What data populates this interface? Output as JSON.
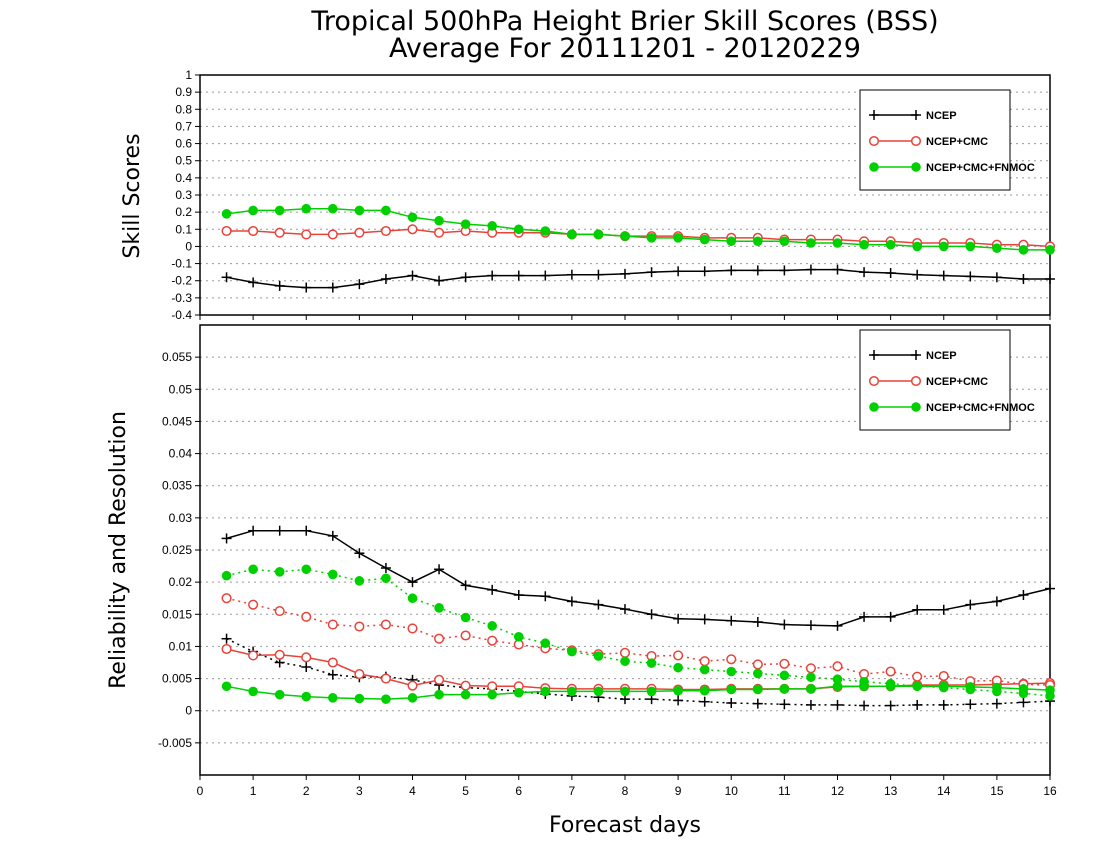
{
  "title": {
    "line1": "Tropical 500hPa Height Brier Skill Scores (BSS)",
    "line2": "Average For 20111201 - 20120229"
  },
  "xlabel": "Forecast days",
  "colors": {
    "ncep": "#000000",
    "cmc": "#e8433a",
    "fnmoc": "#00d000",
    "grid": "#9a9a9a"
  },
  "legend": [
    "NCEP",
    "NCEP+CMC",
    "NCEP+CMC+FNMOC"
  ],
  "chart_data": [
    {
      "type": "line",
      "ylabel": "Skill Scores",
      "xlim": [
        0,
        16
      ],
      "ylim": [
        -0.4,
        1
      ],
      "xticks": [
        "0",
        "1",
        "2",
        "3",
        "4",
        "5",
        "6",
        "7",
        "8",
        "9",
        "10",
        "11",
        "12",
        "13",
        "14",
        "15",
        "16"
      ],
      "yticks": [
        "-0.4",
        "-0.3",
        "-0.2",
        "-0.1",
        "0",
        "0.1",
        "0.2",
        "0.3",
        "0.4",
        "0.5",
        "0.6",
        "0.7",
        "0.8",
        "0.9",
        "1"
      ],
      "grid": true,
      "legend_position": "top-right",
      "x": [
        0.5,
        1,
        1.5,
        2,
        2.5,
        3,
        3.5,
        4,
        4.5,
        5,
        5.5,
        6,
        6.5,
        7,
        7.5,
        8,
        8.5,
        9,
        9.5,
        10,
        10.5,
        11,
        11.5,
        12,
        12.5,
        13,
        13.5,
        14,
        14.5,
        15,
        15.5,
        16
      ],
      "series": [
        {
          "name": "NCEP",
          "style": "solid",
          "marker": "plus",
          "values": [
            -0.18,
            -0.21,
            -0.23,
            -0.24,
            -0.24,
            -0.22,
            -0.19,
            -0.17,
            -0.2,
            -0.18,
            -0.17,
            -0.17,
            -0.17,
            -0.165,
            -0.165,
            -0.16,
            -0.15,
            -0.145,
            -0.145,
            -0.14,
            -0.14,
            -0.14,
            -0.135,
            -0.135,
            -0.15,
            -0.155,
            -0.165,
            -0.17,
            -0.175,
            -0.18,
            -0.19,
            -0.19
          ]
        },
        {
          "name": "NCEP+CMC",
          "style": "solid",
          "marker": "open-circle",
          "values": [
            0.09,
            0.09,
            0.08,
            0.07,
            0.07,
            0.08,
            0.09,
            0.1,
            0.08,
            0.09,
            0.08,
            0.08,
            0.08,
            0.07,
            0.07,
            0.06,
            0.06,
            0.06,
            0.05,
            0.05,
            0.05,
            0.04,
            0.04,
            0.04,
            0.03,
            0.03,
            0.02,
            0.02,
            0.02,
            0.01,
            0.01,
            0
          ]
        },
        {
          "name": "NCEP+CMC+FNMOC",
          "style": "solid",
          "marker": "filled-circle",
          "values": [
            0.19,
            0.21,
            0.21,
            0.22,
            0.22,
            0.21,
            0.21,
            0.17,
            0.15,
            0.13,
            0.12,
            0.1,
            0.09,
            0.07,
            0.07,
            0.06,
            0.05,
            0.05,
            0.04,
            0.03,
            0.03,
            0.03,
            0.02,
            0.02,
            0.01,
            0.01,
            0,
            0,
            0,
            -0.01,
            -0.02,
            -0.02
          ]
        }
      ]
    },
    {
      "type": "line",
      "ylabel": "Reliability and Resolution",
      "xlabel": "Forecast days",
      "xlim": [
        0,
        16
      ],
      "ylim": [
        -0.01,
        0.06
      ],
      "xticks": [
        "0",
        "1",
        "2",
        "3",
        "4",
        "5",
        "6",
        "7",
        "8",
        "9",
        "10",
        "11",
        "12",
        "13",
        "14",
        "15",
        "16"
      ],
      "yticks": [
        "-0.005",
        "0",
        "0.005",
        "0.01",
        "0.015",
        "0.02",
        "0.025",
        "0.03",
        "0.035",
        "0.04",
        "0.045",
        "0.05",
        "0.055"
      ],
      "grid": true,
      "legend_position": "top-right",
      "x": [
        0.5,
        1,
        1.5,
        2,
        2.5,
        3,
        3.5,
        4,
        4.5,
        5,
        5.5,
        6,
        6.5,
        7,
        7.5,
        8,
        8.5,
        9,
        9.5,
        10,
        10.5,
        11,
        11.5,
        12,
        12.5,
        13,
        13.5,
        14,
        14.5,
        15,
        15.5,
        16
      ],
      "series": [
        {
          "name": "NCEP",
          "metric": "resolution",
          "style": "solid",
          "marker": "plus",
          "values": [
            0.0268,
            0.028,
            0.028,
            0.028,
            0.0272,
            0.0245,
            0.0222,
            0.02,
            0.022,
            0.0195,
            0.0188,
            0.018,
            0.0178,
            0.017,
            0.0165,
            0.0158,
            0.015,
            0.0143,
            0.0142,
            0.014,
            0.0138,
            0.0134,
            0.0133,
            0.0132,
            0.0146,
            0.0146,
            0.0157,
            0.0157,
            0.0165,
            0.017,
            0.018,
            0.019
          ]
        },
        {
          "name": "NCEP",
          "metric": "reliability",
          "style": "dotted",
          "marker": "plus",
          "values": [
            0.0112,
            0.0092,
            0.0075,
            0.0068,
            0.0056,
            0.0052,
            0.0053,
            0.0048,
            0.004,
            0.0036,
            0.0034,
            0.003,
            0.0026,
            0.0023,
            0.0021,
            0.0018,
            0.0018,
            0.0016,
            0.0014,
            0.0012,
            0.0011,
            0.001,
            0.0009,
            0.0009,
            0.0008,
            0.0008,
            0.0009,
            0.0009,
            0.001,
            0.0011,
            0.0013,
            0.0015
          ]
        },
        {
          "name": "NCEP+CMC",
          "metric": "resolution",
          "style": "solid",
          "marker": "open-circle",
          "values": [
            0.0096,
            0.0086,
            0.0087,
            0.0083,
            0.0075,
            0.0057,
            0.005,
            0.0039,
            0.0048,
            0.0039,
            0.0038,
            0.0038,
            0.0035,
            0.0034,
            0.0034,
            0.0034,
            0.0034,
            0.0033,
            0.0033,
            0.0034,
            0.0034,
            0.0034,
            0.0034,
            0.0037,
            0.0038,
            0.0038,
            0.004,
            0.004,
            0.004,
            0.0041,
            0.0042,
            0.0043
          ]
        },
        {
          "name": "NCEP+CMC",
          "metric": "reliability",
          "style": "dotted",
          "marker": "open-circle",
          "values": [
            0.0175,
            0.0165,
            0.0155,
            0.0146,
            0.0134,
            0.0131,
            0.0134,
            0.0128,
            0.0112,
            0.0117,
            0.0109,
            0.0103,
            0.0097,
            0.0094,
            0.0088,
            0.009,
            0.0085,
            0.0086,
            0.0077,
            0.008,
            0.0072,
            0.0073,
            0.0066,
            0.0069,
            0.0057,
            0.0061,
            0.0053,
            0.0054,
            0.0046,
            0.0047,
            0.0041,
            0.004
          ]
        },
        {
          "name": "NCEP+CMC+FNMOC",
          "metric": "resolution",
          "style": "solid",
          "marker": "filled-circle",
          "values": [
            0.0038,
            0.003,
            0.0025,
            0.0022,
            0.002,
            0.0019,
            0.0018,
            0.002,
            0.0025,
            0.0025,
            0.0025,
            0.0028,
            0.003,
            0.003,
            0.003,
            0.003,
            0.003,
            0.0031,
            0.0031,
            0.0033,
            0.0033,
            0.0034,
            0.0034,
            0.0038,
            0.0038,
            0.0038,
            0.0038,
            0.0038,
            0.0037,
            0.0036,
            0.0034,
            0.0032
          ]
        },
        {
          "name": "NCEP+CMC+FNMOC",
          "metric": "reliability",
          "style": "dotted",
          "marker": "filled-circle",
          "values": [
            0.021,
            0.022,
            0.0216,
            0.022,
            0.0212,
            0.0202,
            0.0206,
            0.0175,
            0.016,
            0.0145,
            0.0132,
            0.0115,
            0.0105,
            0.0092,
            0.0085,
            0.0077,
            0.0074,
            0.0067,
            0.0064,
            0.0061,
            0.0058,
            0.0055,
            0.0052,
            0.0049,
            0.0045,
            0.0042,
            0.0038,
            0.0036,
            0.0033,
            0.003,
            0.0027,
            0.0023
          ]
        }
      ]
    }
  ]
}
